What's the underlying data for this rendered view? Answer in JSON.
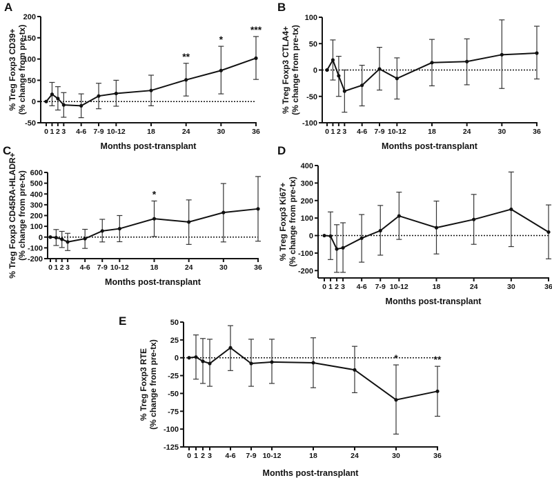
{
  "chart_data": [
    {
      "panel": "A",
      "type": "line",
      "ylabel": [
        "% Treg Foxp3 CD39+",
        "(% change from pre-tx)"
      ],
      "xlabel": "Months post-transplant",
      "x_ticks": [
        "0",
        "1",
        "2",
        "3",
        "4-6",
        "7-9",
        "10-12",
        "18",
        "24",
        "30",
        "36"
      ],
      "x_values": [
        0,
        1,
        2,
        3,
        6,
        9,
        12,
        18,
        24,
        30,
        36
      ],
      "ylim": [
        -50,
        200
      ],
      "y_ticks": [
        -50,
        0,
        50,
        100,
        150,
        200
      ],
      "mean": [
        0,
        17,
        7,
        -8,
        -10,
        13,
        19,
        26,
        51,
        73,
        102
      ],
      "upper": [
        null,
        45,
        35,
        21,
        18,
        43,
        50,
        62,
        90,
        130,
        153
      ],
      "lower": [
        null,
        -10,
        -20,
        -37,
        -38,
        -17,
        -11,
        -10,
        13,
        18,
        52
      ],
      "significance": [
        null,
        null,
        null,
        null,
        null,
        null,
        null,
        null,
        "**",
        "*",
        "***"
      ],
      "reference_line": 0
    },
    {
      "panel": "B",
      "type": "line",
      "ylabel": [
        "% Treg Foxp3 CTLA4+",
        "(% change from pre-tx)"
      ],
      "xlabel": "Months post-transplant",
      "x_ticks": [
        "0",
        "1",
        "2",
        "3",
        "4-6",
        "7-9",
        "10-12",
        "18",
        "24",
        "30",
        "36"
      ],
      "x_values": [
        0,
        1,
        2,
        3,
        6,
        9,
        12,
        18,
        24,
        30,
        36
      ],
      "ylim": [
        -100,
        100
      ],
      "y_ticks": [
        -100,
        -50,
        0,
        50,
        100
      ],
      "mean": [
        0,
        19,
        -11,
        -40,
        -29,
        2,
        -16,
        14,
        16,
        29,
        32
      ],
      "upper": [
        null,
        57,
        26,
        0,
        9,
        43,
        23,
        58,
        59,
        95,
        83
      ],
      "lower": [
        null,
        -19,
        -50,
        -80,
        -68,
        -38,
        -55,
        -30,
        -28,
        -35,
        -17
      ],
      "significance": [
        null,
        null,
        null,
        null,
        null,
        null,
        null,
        null,
        null,
        null,
        null
      ],
      "reference_line": 0
    },
    {
      "panel": "C",
      "type": "line",
      "ylabel": [
        "% Treg Foxp3 CD45RA-HLADR+",
        "(% change from pre-tx)"
      ],
      "xlabel": "Months post-transplant",
      "x_ticks": [
        "0",
        "1",
        "2",
        "3",
        "4-6",
        "7-9",
        "10-12",
        "18",
        "24",
        "30",
        "36"
      ],
      "x_values": [
        0,
        1,
        2,
        3,
        6,
        9,
        12,
        18,
        24,
        30,
        36
      ],
      "ylim": [
        -200,
        600
      ],
      "y_ticks": [
        -200,
        -100,
        0,
        100,
        200,
        300,
        400,
        500,
        600
      ],
      "mean": [
        0,
        -5,
        -20,
        -45,
        -15,
        57,
        78,
        170,
        140,
        228,
        262
      ],
      "upper": [
        null,
        70,
        53,
        35,
        72,
        165,
        200,
        335,
        345,
        497,
        562
      ],
      "lower": [
        null,
        -78,
        -97,
        -125,
        -105,
        -45,
        -43,
        5,
        -68,
        -45,
        -38
      ],
      "significance": [
        null,
        null,
        null,
        null,
        null,
        null,
        null,
        "*",
        null,
        null,
        null
      ],
      "reference_line": 0
    },
    {
      "panel": "D",
      "type": "line",
      "ylabel": [
        "% Treg Foxp3 Ki67+",
        "(% change from pre-tx)"
      ],
      "xlabel": "Months post-transplant",
      "x_ticks": [
        "0",
        "1",
        "2",
        "3",
        "4-6",
        "7-9",
        "10-12",
        "18",
        "24",
        "30",
        "36"
      ],
      "x_values": [
        0,
        1,
        2,
        3,
        6,
        9,
        12,
        18,
        24,
        30,
        36
      ],
      "ylim": [
        -250,
        400
      ],
      "y_ticks": [
        -200,
        -100,
        0,
        100,
        200,
        300,
        400
      ],
      "mean": [
        0,
        -3,
        -77,
        -70,
        -15,
        28,
        112,
        45,
        92,
        150,
        20
      ],
      "upper": [
        null,
        135,
        62,
        73,
        120,
        172,
        248,
        197,
        235,
        363,
        175
      ],
      "lower": [
        null,
        -137,
        -210,
        -210,
        -152,
        -112,
        -22,
        -105,
        -50,
        -63,
        -133
      ],
      "significance": [
        null,
        null,
        null,
        null,
        null,
        null,
        null,
        null,
        null,
        null,
        null
      ],
      "reference_line": 0
    },
    {
      "panel": "E",
      "type": "line",
      "ylabel": [
        "% Treg Foxp3 RTE",
        "(% change from pre-tx)"
      ],
      "xlabel": "Months post-transplant",
      "x_ticks": [
        "0",
        "1",
        "2",
        "3",
        "4-6",
        "7-9",
        "10-12",
        "18",
        "24",
        "30",
        "36"
      ],
      "x_values": [
        0,
        1,
        2,
        3,
        6,
        9,
        12,
        18,
        24,
        30,
        36
      ],
      "ylim": [
        -125,
        50
      ],
      "y_ticks": [
        -125,
        -100,
        -75,
        -50,
        -25,
        0,
        25,
        50
      ],
      "mean": [
        0,
        1,
        -5,
        -8,
        14,
        -8,
        -6,
        -7,
        -17,
        -59,
        -47
      ],
      "upper": [
        null,
        32,
        27,
        26,
        45,
        26,
        26,
        28,
        16,
        -10,
        -12
      ],
      "lower": [
        null,
        -30,
        -36,
        -40,
        -18,
        -40,
        -36,
        -42,
        -49,
        -107,
        -82
      ],
      "significance": [
        null,
        null,
        null,
        null,
        null,
        null,
        null,
        null,
        null,
        "*",
        "**"
      ],
      "reference_line": 0
    }
  ]
}
